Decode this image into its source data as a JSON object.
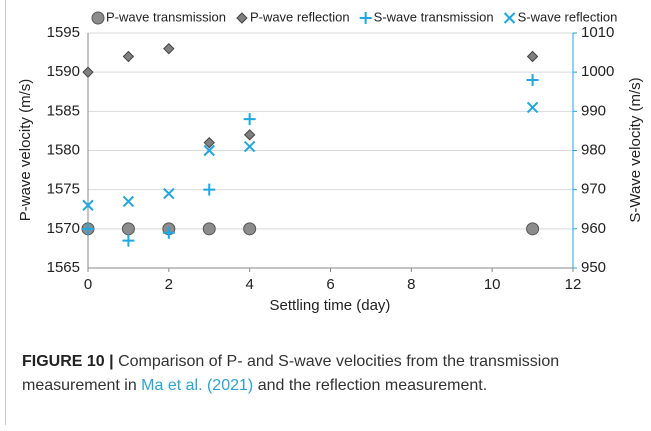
{
  "chart_data": {
    "type": "scatter",
    "x_label": "Settling time (day)",
    "y_label": "P-wave velocity (m/s)",
    "y2_label": "S-Wave velocity (m/s)",
    "x": [
      0,
      1,
      2,
      3,
      4,
      11
    ],
    "series": [
      {
        "name": "P-wave transmission",
        "color": "#8c8c8c",
        "marker": "circle",
        "values": [
          1570,
          1570,
          1570,
          1570,
          1570,
          1570
        ]
      },
      {
        "name": "P-wave reflection",
        "color": "#7f7f7f",
        "marker": "diamond",
        "values": [
          1590,
          1592,
          1593,
          1581,
          1582,
          1592
        ]
      },
      {
        "name": "S-wave transmission",
        "color": "#1ea7e1",
        "marker": "plus",
        "axis": "y2",
        "values": [
          960,
          957,
          959,
          970,
          988,
          998
        ]
      },
      {
        "name": "S-wave reflection",
        "color": "#1ea7e1",
        "marker": "x",
        "axis": "y2",
        "values": [
          966,
          967,
          969,
          980,
          981,
          991
        ]
      }
    ],
    "xlim": [
      0,
      12
    ],
    "xticks": [
      0,
      2,
      4,
      6,
      8,
      10,
      12
    ],
    "ylim": [
      1565,
      1595
    ],
    "yticks": [
      1565,
      1570,
      1575,
      1580,
      1585,
      1590,
      1595
    ],
    "y2lim": [
      950,
      1010
    ],
    "y2ticks": [
      950,
      960,
      970,
      980,
      990,
      1000,
      1010
    ],
    "y2_color": "#1ea7e1",
    "grid": true,
    "legend": "top"
  },
  "caption": {
    "label": "FIGURE 10 |",
    "text": "Comparison of P- and S-wave velocities from the transmission measurement in",
    "link": "Ma et al. (2021)",
    "text_end": "and the reflection measurement."
  }
}
